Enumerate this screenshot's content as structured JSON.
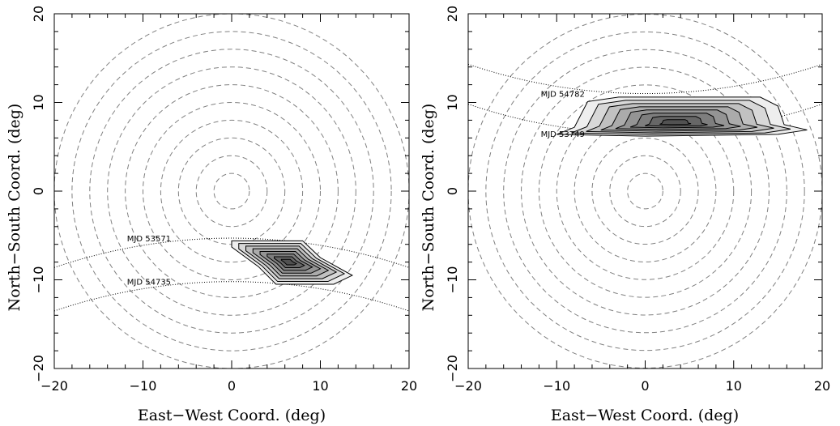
{
  "chart_data": [
    {
      "type": "contour",
      "panel": "left",
      "xlabel": "East−West Coord. (deg)",
      "ylabel": "North−South Coord. (deg)",
      "xlim": [
        -20,
        20
      ],
      "ylim": [
        -20,
        20
      ],
      "x_ticks": [
        "−20",
        "−10",
        "0",
        "10",
        "20"
      ],
      "y_ticks": [
        "−20",
        "−10",
        "0",
        "10",
        "20"
      ],
      "ring_radii_deg": [
        2,
        4,
        6,
        8,
        10,
        12,
        14,
        16,
        18,
        20
      ],
      "annotations": [
        {
          "text": "MJD 53571",
          "dec": -5.3
        },
        {
          "text": "MJD 54735",
          "dec": -10.2
        }
      ],
      "region": {
        "outline": [
          [
            0,
            -5.6
          ],
          [
            8,
            -5.6
          ],
          [
            10,
            -7.5
          ],
          [
            13.6,
            -9.5
          ],
          [
            11.5,
            -10.5
          ],
          [
            5,
            -10.5
          ],
          [
            3,
            -8.5
          ],
          [
            0,
            -6.3
          ]
        ],
        "peak": [
          6.4,
          -8.0
        ],
        "levels": 8
      }
    },
    {
      "type": "contour",
      "panel": "right",
      "xlabel": "East−West Coord. (deg)",
      "ylabel": "North−South Coord. (deg)",
      "xlim": [
        -20,
        20
      ],
      "ylim": [
        -20,
        20
      ],
      "x_ticks": [
        "−20",
        "−10",
        "0",
        "10",
        "20"
      ],
      "y_ticks": [
        "−20",
        "−10",
        "0",
        "10",
        "20"
      ],
      "ring_radii_deg": [
        2,
        4,
        6,
        8,
        10,
        12,
        14,
        16,
        18,
        20
      ],
      "annotations": [
        {
          "text": "MJD 54782",
          "dec": 11.0
        },
        {
          "text": "MJD 53749",
          "dec": 6.5
        }
      ],
      "region": {
        "outline": [
          [
            -10,
            6.4
          ],
          [
            -8,
            7.2
          ],
          [
            -6.5,
            10.1
          ],
          [
            -3,
            10.6
          ],
          [
            13,
            10.6
          ],
          [
            15,
            9.6
          ],
          [
            15.7,
            7.5
          ],
          [
            18.3,
            6.9
          ],
          [
            15,
            6.4
          ],
          [
            0,
            6.2
          ]
        ],
        "peak": [
          3.3,
          7.7
        ],
        "levels": 8
      }
    }
  ]
}
